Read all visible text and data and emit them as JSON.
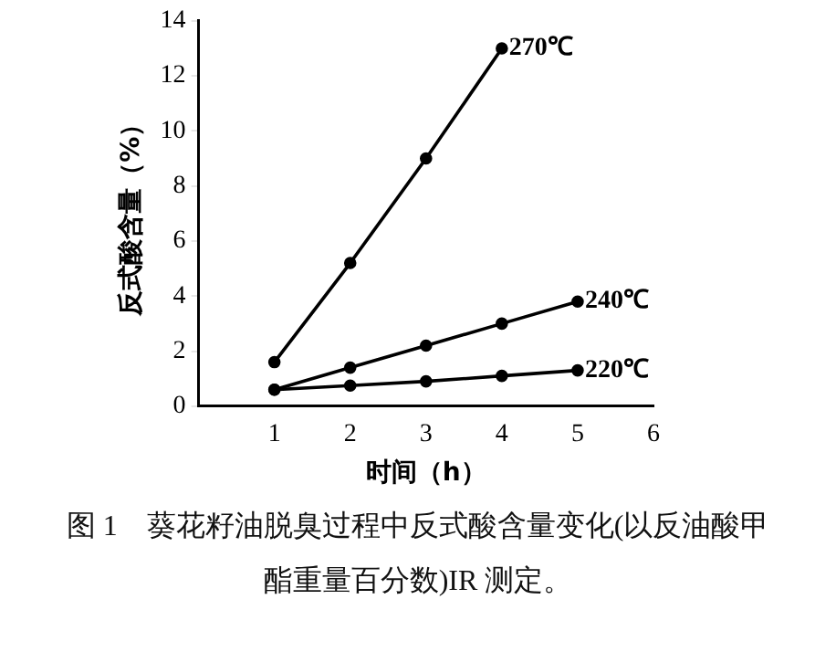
{
  "chart_data": {
    "type": "line",
    "xlabel": "时间（h）",
    "ylabel": "反式酸含量（%）",
    "xlim": [
      0,
      6
    ],
    "xticks": [
      1,
      2,
      3,
      4,
      5,
      6
    ],
    "ylim": [
      0,
      14
    ],
    "yticks": [
      0,
      2,
      4,
      6,
      8,
      10,
      12,
      14
    ],
    "grid": false,
    "legend": false,
    "marker": "circle",
    "line_style": "solid",
    "series": [
      {
        "name": "270℃",
        "color": "#000000",
        "x": [
          1,
          2,
          3,
          4
        ],
        "values": [
          1.6,
          5.2,
          9,
          13
        ]
      },
      {
        "name": "240℃",
        "color": "#000000",
        "x": [
          1,
          2,
          3,
          4,
          5
        ],
        "values": [
          0.6,
          1.4,
          2.2,
          3.0,
          3.8
        ]
      },
      {
        "name": "220℃",
        "color": "#000000",
        "x": [
          1,
          2,
          3,
          4,
          5
        ],
        "values": [
          0.6,
          0.75,
          0.9,
          1.1,
          1.3
        ]
      }
    ],
    "annotations": [
      "图 1　葵花籽油脱臭过程中反式酸含量变化(以反油酸甲酯重量百分数)IR 测定。"
    ]
  }
}
